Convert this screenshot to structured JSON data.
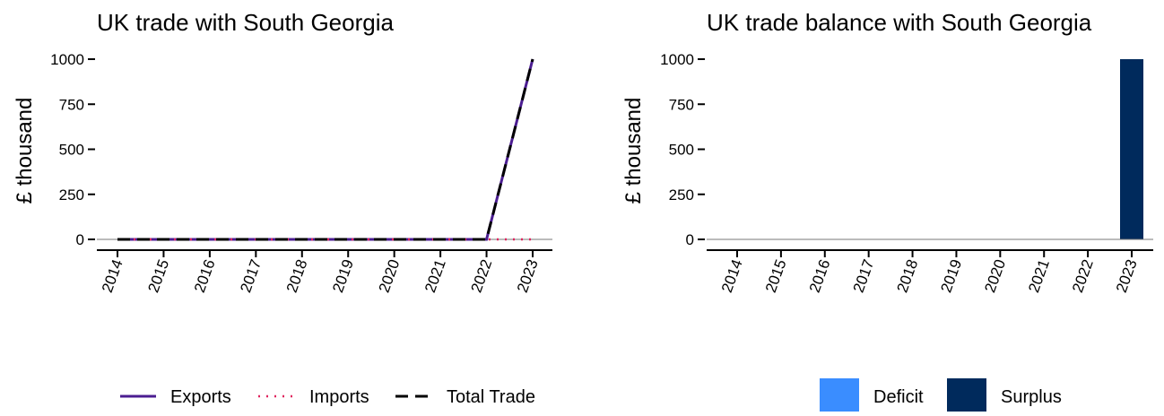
{
  "chart_data": [
    {
      "type": "line",
      "title": "UK trade with South Georgia",
      "xlabel": "",
      "ylabel": "£ thousand",
      "x": [
        "2014",
        "2015",
        "2016",
        "2017",
        "2018",
        "2019",
        "2020",
        "2021",
        "2022",
        "2023"
      ],
      "ylim": [
        0,
        1000
      ],
      "yticks": [
        0,
        250,
        500,
        750,
        1000
      ],
      "grid": false,
      "legend_position": "bottom",
      "series": [
        {
          "name": "Exports",
          "color": "#4b1d91",
          "dash": "solid",
          "values": [
            0,
            0,
            0,
            0,
            0,
            0,
            0,
            0,
            0,
            1000
          ]
        },
        {
          "name": "Imports",
          "color": "#e0245e",
          "dash": "dotted",
          "values": [
            0,
            0,
            0,
            0,
            0,
            0,
            0,
            0,
            0,
            0
          ]
        },
        {
          "name": "Total Trade",
          "color": "#000000",
          "dash": "dashed",
          "values": [
            0,
            0,
            0,
            0,
            0,
            0,
            0,
            0,
            0,
            1000
          ]
        }
      ]
    },
    {
      "type": "bar",
      "title": "UK trade balance with South Georgia",
      "xlabel": "",
      "ylabel": "£ thousand",
      "categories": [
        "2014",
        "2015",
        "2016",
        "2017",
        "2018",
        "2019",
        "2020",
        "2021",
        "2022",
        "2023"
      ],
      "ylim": [
        0,
        1000
      ],
      "yticks": [
        0,
        250,
        500,
        750,
        1000
      ],
      "grid": false,
      "legend_position": "bottom",
      "values": [
        0,
        0,
        0,
        0,
        0,
        0,
        0,
        0,
        0,
        1000
      ],
      "legend": [
        {
          "name": "Deficit",
          "color": "#3a8dff"
        },
        {
          "name": "Surplus",
          "color": "#002a5c"
        }
      ]
    }
  ]
}
